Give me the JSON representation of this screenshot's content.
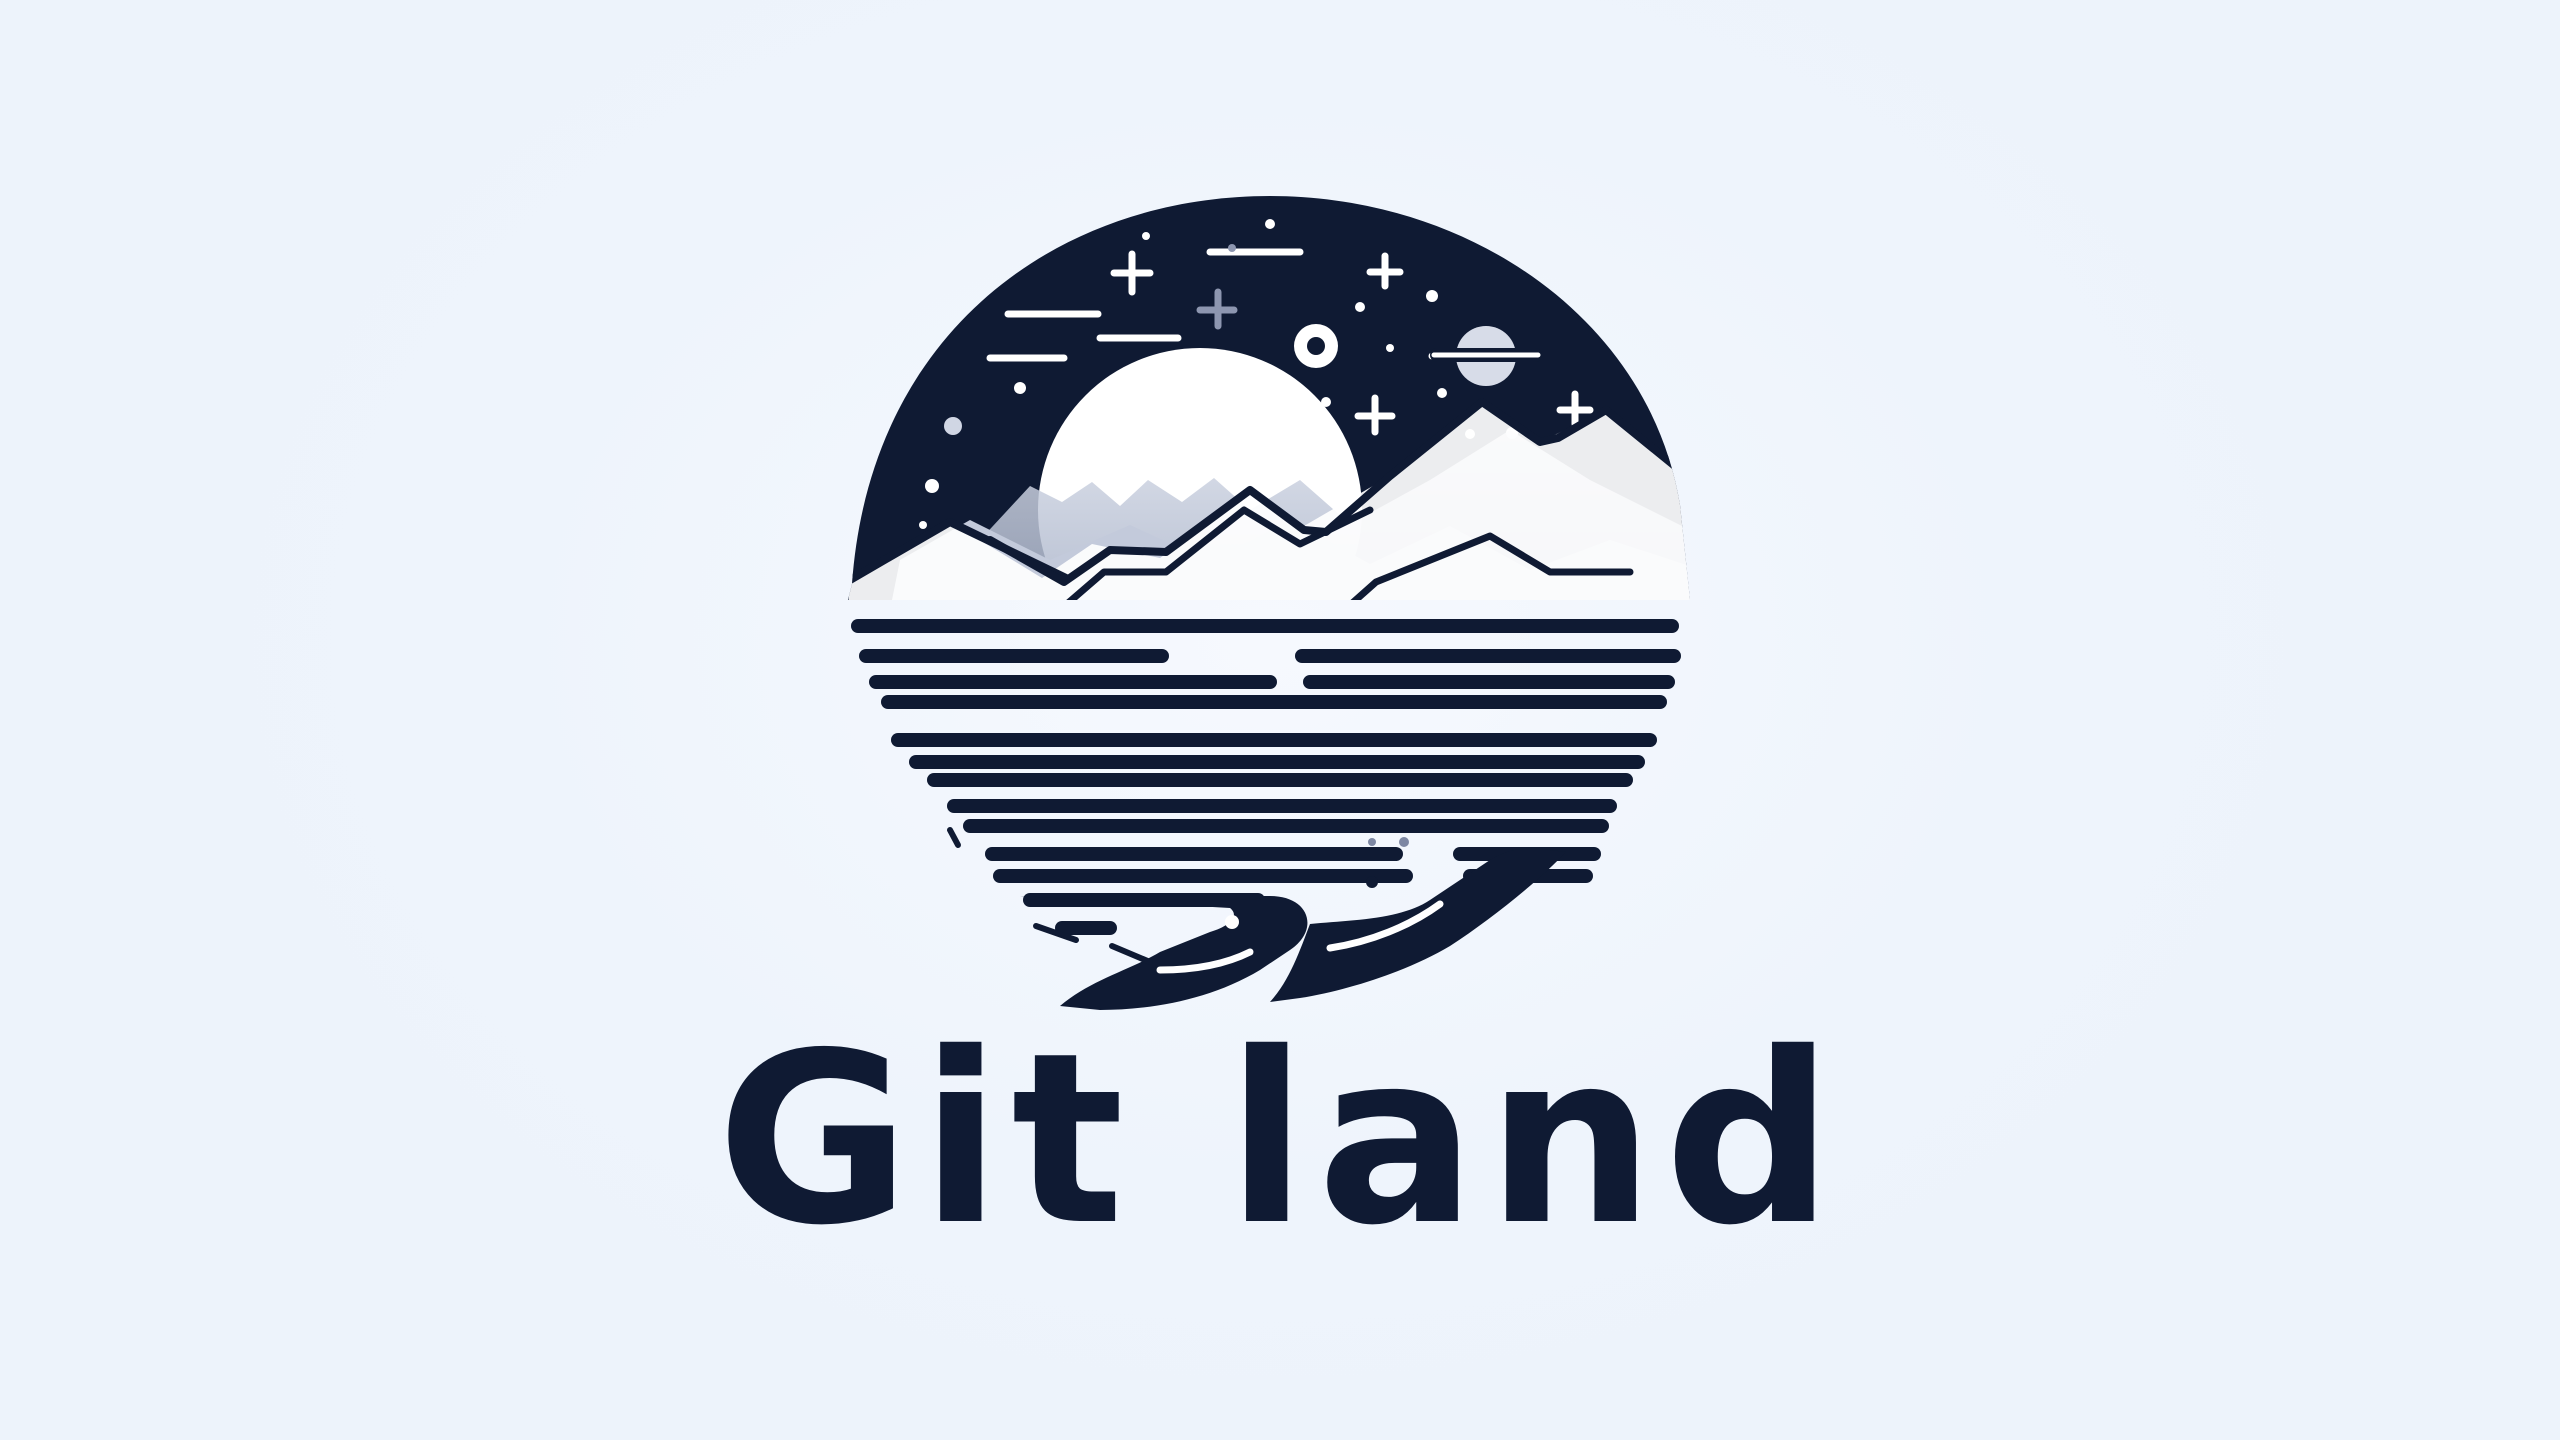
{
  "logo": {
    "wordmark": "Git land",
    "mark_description_icon": "night-landscape-emblem-icon"
  },
  "colors": {
    "background": "#eef4fc",
    "navy": "#0f1a33",
    "moon": "#ffffff",
    "mist": "#b9c2d6",
    "dim_star": "#7d87a3"
  }
}
